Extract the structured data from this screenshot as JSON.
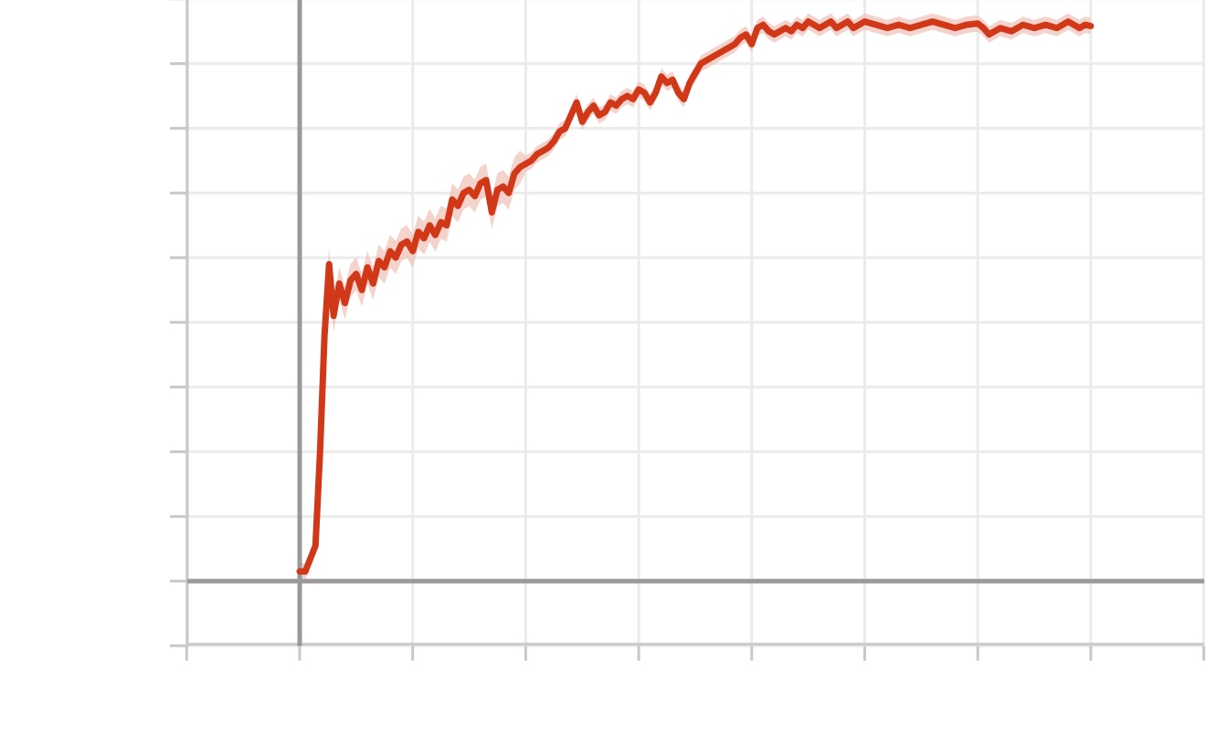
{
  "colors": {
    "background": "#ffffff",
    "grid": "#ebebeb",
    "axis": "#999999",
    "spine": "#c8c8c8",
    "line": "#d03818",
    "band": "#f0c4bc"
  },
  "chart_data": {
    "type": "line",
    "title": "",
    "xlabel": "",
    "ylabel": "",
    "grid": true,
    "legend": "none",
    "xlim": [
      -1,
      8
    ],
    "ylim": [
      -1,
      9
    ],
    "xticks": [
      -1,
      0,
      1,
      2,
      3,
      4,
      5,
      6,
      7,
      8
    ],
    "yticks": [
      -1,
      0,
      1,
      2,
      3,
      4,
      5,
      6,
      7,
      8,
      9
    ],
    "x_reference_line": 0,
    "y_reference_line": 0,
    "series": [
      {
        "x": [
          0,
          0.05,
          0.14,
          0.18,
          0.22,
          0.26,
          0.3,
          0.35,
          0.4,
          0.45,
          0.5,
          0.55,
          0.6,
          0.65,
          0.7,
          0.75,
          0.8,
          0.85,
          0.9,
          0.95,
          1.0,
          1.05,
          1.1,
          1.15,
          1.2,
          1.25,
          1.3,
          1.35,
          1.4,
          1.45,
          1.5,
          1.55,
          1.6,
          1.65,
          1.7,
          1.75,
          1.8,
          1.85,
          1.9,
          1.95,
          2.0,
          2.05,
          2.1,
          2.15,
          2.2,
          2.25,
          2.3,
          2.35,
          2.4,
          2.45,
          2.5,
          2.55,
          2.6,
          2.65,
          2.7,
          2.75,
          2.8,
          2.85,
          2.9,
          2.95,
          3.0,
          3.05,
          3.1,
          3.15,
          3.2,
          3.25,
          3.3,
          3.35,
          3.4,
          3.45,
          3.5,
          3.55,
          3.6,
          3.65,
          3.7,
          3.75,
          3.8,
          3.85,
          3.9,
          3.95,
          4.0,
          4.05,
          4.1,
          4.15,
          4.2,
          4.25,
          4.3,
          4.35,
          4.4,
          4.45,
          4.5,
          4.55,
          4.6,
          4.65,
          4.7,
          4.75,
          4.8,
          4.85,
          4.9,
          4.95,
          5.0,
          5.1,
          5.2,
          5.3,
          5.4,
          5.5,
          5.6,
          5.7,
          5.8,
          5.9,
          6.0,
          6.05,
          6.1,
          6.2,
          6.3,
          6.4,
          6.5,
          6.6,
          6.7,
          6.8,
          6.85,
          6.9,
          6.95,
          7.0
        ],
        "y": [
          0.15,
          0.15,
          0.55,
          2.0,
          3.8,
          4.9,
          4.1,
          4.6,
          4.3,
          4.65,
          4.75,
          4.5,
          4.85,
          4.6,
          4.95,
          4.85,
          5.1,
          5.0,
          5.2,
          5.25,
          5.1,
          5.4,
          5.3,
          5.5,
          5.35,
          5.55,
          5.5,
          5.9,
          5.8,
          6.0,
          6.05,
          5.95,
          6.15,
          6.2,
          5.7,
          6.05,
          6.1,
          6.0,
          6.3,
          6.4,
          6.45,
          6.5,
          6.6,
          6.65,
          6.7,
          6.8,
          6.95,
          7.0,
          7.2,
          7.4,
          7.1,
          7.25,
          7.35,
          7.2,
          7.25,
          7.4,
          7.35,
          7.45,
          7.5,
          7.45,
          7.6,
          7.55,
          7.4,
          7.55,
          7.8,
          7.7,
          7.75,
          7.55,
          7.45,
          7.7,
          7.85,
          8.0,
          8.05,
          8.1,
          8.15,
          8.2,
          8.25,
          8.3,
          8.4,
          8.45,
          8.3,
          8.55,
          8.6,
          8.5,
          8.45,
          8.5,
          8.55,
          8.5,
          8.6,
          8.55,
          8.65,
          8.6,
          8.55,
          8.6,
          8.65,
          8.55,
          8.6,
          8.65,
          8.55,
          8.6,
          8.65,
          8.6,
          8.55,
          8.6,
          8.55,
          8.6,
          8.65,
          8.6,
          8.55,
          8.6,
          8.62,
          8.55,
          8.45,
          8.55,
          8.5,
          8.6,
          8.55,
          8.6,
          8.55,
          8.65,
          8.6,
          8.55,
          8.6,
          8.58
        ]
      }
    ]
  }
}
